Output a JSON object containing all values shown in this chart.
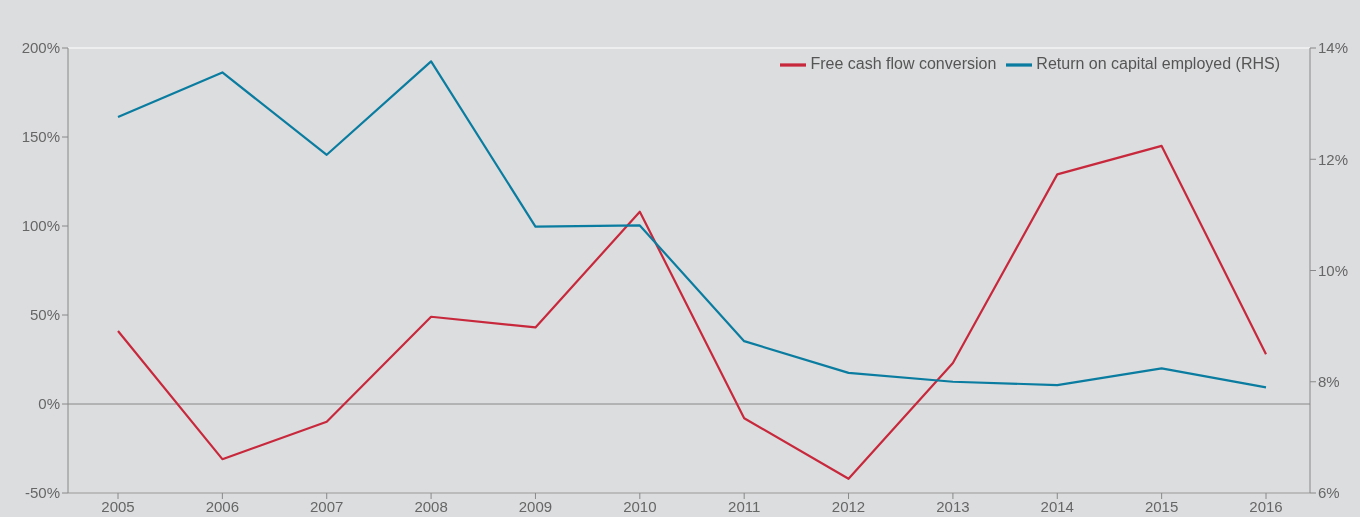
{
  "chart_data": {
    "type": "line",
    "categories": [
      "2005",
      "2006",
      "2007",
      "2008",
      "2009",
      "2010",
      "2011",
      "2012",
      "2013",
      "2014",
      "2015",
      "2016"
    ],
    "series": [
      {
        "name": "Free cash flow conversion",
        "color": "#c8283c",
        "values": [
          41,
          -31,
          -10,
          49,
          43,
          108,
          -8,
          -42,
          23,
          129,
          145,
          28
        ]
      },
      {
        "name": "Return on capital employed (RHS)",
        "color": "#0a7ca0",
        "axis": "y2",
        "values": [
          12.76,
          13.56,
          12.08,
          13.76,
          10.79,
          10.81,
          8.73,
          8.16,
          8.0,
          7.94,
          8.24,
          7.9
        ]
      }
    ],
    "ylim": [
      -50,
      200
    ],
    "yticks": [
      {
        "value": -50,
        "label": "-50%"
      },
      {
        "value": 0,
        "label": "0%"
      },
      {
        "value": 50,
        "label": "50%"
      },
      {
        "value": 100,
        "label": "100%"
      },
      {
        "value": 150,
        "label": "150%"
      },
      {
        "value": 200,
        "label": "200%"
      }
    ],
    "y2lim": [
      6,
      14
    ],
    "y2ticks": [
      {
        "value": 6,
        "label": "6%"
      },
      {
        "value": 8,
        "label": "8%"
      },
      {
        "value": 10,
        "label": "10%"
      },
      {
        "value": 12,
        "label": "12%"
      },
      {
        "value": 14,
        "label": "14%"
      }
    ],
    "grid": "y",
    "legend": "top right",
    "marker": "none",
    "line_style": "solid"
  }
}
